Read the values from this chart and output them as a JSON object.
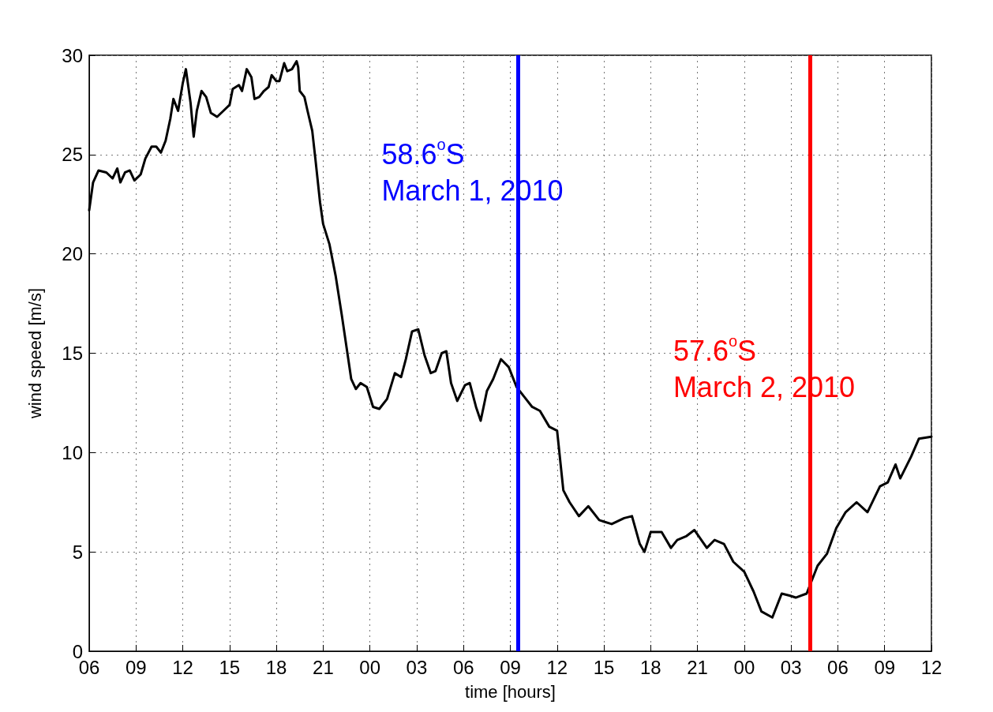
{
  "chart_data": {
    "type": "line",
    "xlabel": "time [hours]",
    "ylabel": "wind speed [m/s]",
    "xlim": [
      6,
      60
    ],
    "xticks": [
      {
        "value": 6,
        "label": "06"
      },
      {
        "value": 9,
        "label": "09"
      },
      {
        "value": 12,
        "label": "12"
      },
      {
        "value": 15,
        "label": "15"
      },
      {
        "value": 18,
        "label": "18"
      },
      {
        "value": 21,
        "label": "21"
      },
      {
        "value": 24,
        "label": "00"
      },
      {
        "value": 27,
        "label": "03"
      },
      {
        "value": 30,
        "label": "06"
      },
      {
        "value": 33,
        "label": "09"
      },
      {
        "value": 36,
        "label": "12"
      },
      {
        "value": 39,
        "label": "15"
      },
      {
        "value": 42,
        "label": "18"
      },
      {
        "value": 45,
        "label": "21"
      },
      {
        "value": 48,
        "label": "00"
      },
      {
        "value": 51,
        "label": "03"
      },
      {
        "value": 54,
        "label": "06"
      },
      {
        "value": 57,
        "label": "09"
      },
      {
        "value": 60,
        "label": "12"
      }
    ],
    "ylim": [
      0,
      30
    ],
    "yticks": [
      0,
      5,
      10,
      15,
      20,
      25,
      30
    ],
    "grid": true,
    "series": [
      {
        "color": "#000000",
        "x": [
          6.0,
          6.25,
          6.6,
          7.1,
          7.5,
          7.8,
          8.0,
          8.3,
          8.6,
          8.9,
          9.3,
          9.6,
          10.0,
          10.3,
          10.6,
          10.9,
          11.2,
          11.4,
          11.7,
          12.0,
          12.2,
          12.5,
          12.7,
          12.9,
          13.2,
          13.5,
          13.8,
          14.2,
          14.6,
          15.0,
          15.2,
          15.6,
          15.8,
          16.1,
          16.4,
          16.6,
          16.9,
          17.2,
          17.5,
          17.7,
          18.0,
          18.2,
          18.5,
          18.7,
          19.0,
          19.3,
          19.4,
          19.5,
          19.8,
          20.0,
          20.3,
          20.5,
          20.8,
          21.0,
          21.4,
          21.8,
          22.2,
          22.5,
          22.8,
          23.1,
          23.4,
          23.8,
          24.2,
          24.6,
          25.1,
          25.6,
          26.0,
          26.3,
          26.7,
          27.1,
          27.5,
          27.9,
          28.2,
          28.6,
          28.9,
          29.2,
          29.6,
          30.1,
          30.4,
          30.8,
          31.1,
          31.5,
          31.9,
          32.4,
          32.9,
          33.4,
          33.9,
          34.4,
          34.9,
          35.5,
          36.0,
          36.4,
          36.8,
          37.4,
          38.0,
          38.7,
          39.5,
          40.3,
          40.8,
          41.3,
          41.6,
          42.0,
          42.7,
          43.3,
          43.7,
          44.3,
          44.8,
          45.6,
          46.1,
          46.7,
          47.3,
          48.0,
          48.6,
          49.1,
          49.8,
          50.4,
          50.9,
          51.3,
          52.0,
          52.7,
          53.3,
          53.9,
          54.5,
          55.2,
          55.9,
          56.7,
          57.2,
          57.7,
          58.0,
          58.7,
          59.2,
          60.0
        ],
        "values": [
          22.2,
          23.6,
          24.2,
          24.1,
          23.8,
          24.3,
          23.6,
          24.1,
          24.2,
          23.7,
          24.0,
          24.8,
          25.4,
          25.4,
          25.1,
          25.7,
          26.8,
          27.8,
          27.2,
          28.6,
          29.3,
          27.6,
          25.9,
          27.2,
          28.2,
          27.9,
          27.1,
          26.9,
          27.2,
          27.5,
          28.3,
          28.5,
          28.2,
          29.3,
          28.9,
          27.8,
          27.9,
          28.2,
          28.4,
          29.0,
          28.7,
          28.7,
          29.6,
          29.2,
          29.3,
          29.7,
          29.4,
          28.2,
          27.9,
          27.2,
          26.2,
          24.8,
          22.6,
          21.5,
          20.5,
          18.9,
          16.9,
          15.3,
          13.7,
          13.2,
          13.5,
          13.3,
          12.3,
          12.2,
          12.7,
          14.0,
          13.8,
          14.7,
          16.1,
          16.2,
          14.9,
          14.0,
          14.1,
          15.0,
          15.1,
          13.5,
          12.6,
          13.4,
          13.5,
          12.3,
          11.6,
          13.1,
          13.7,
          14.7,
          14.3,
          13.3,
          12.8,
          12.3,
          12.1,
          11.3,
          11.1,
          8.1,
          7.5,
          6.8,
          7.3,
          6.6,
          6.4,
          6.7,
          6.8,
          5.4,
          5.0,
          6.0,
          6.0,
          5.2,
          5.6,
          5.8,
          6.1,
          5.2,
          5.6,
          5.4,
          4.5,
          4.0,
          3.0,
          2.0,
          1.7,
          2.9,
          2.8,
          2.7,
          2.9,
          4.3,
          4.9,
          6.2,
          7.0,
          7.5,
          7.0,
          8.3,
          8.5,
          9.4,
          8.7,
          9.8,
          10.7,
          10.8
        ]
      }
    ],
    "ref_lines": [
      {
        "axis": "x",
        "value": 33.5,
        "color": "#0000ff",
        "label": "58.6$^{o}$S\nMarch 1, 2010"
      },
      {
        "axis": "x",
        "value": 52.2,
        "color": "#ff0000",
        "label": "57.6$^{o}$S\nMarch 2, 2010"
      }
    ]
  }
}
